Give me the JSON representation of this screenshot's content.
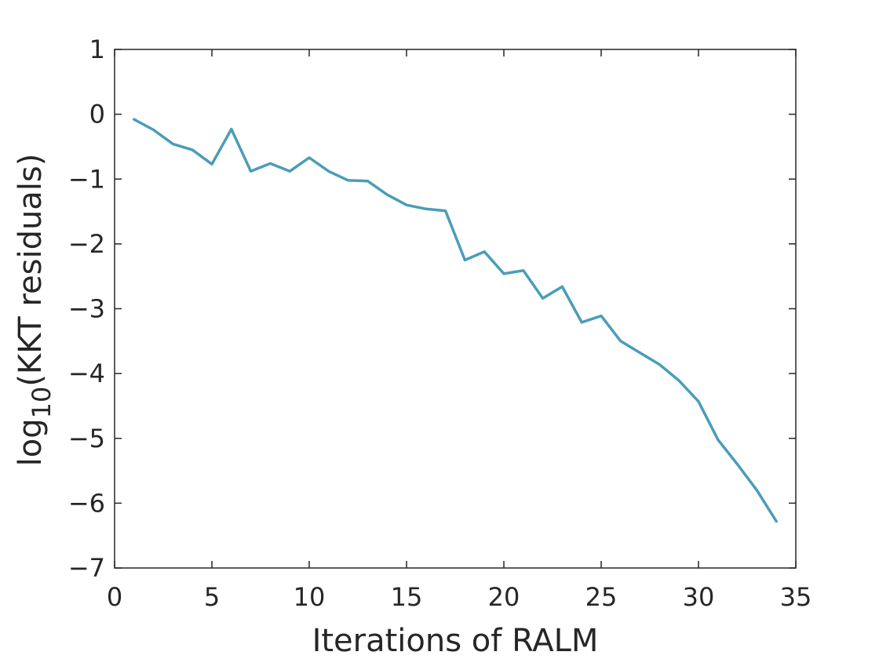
{
  "chart_data": {
    "type": "line",
    "xlabel": "Iterations of RALM",
    "ylabel_base": "log",
    "ylabel_sub": "10",
    "ylabel_rest": "(KKT residuals)",
    "xlim": [
      0,
      35
    ],
    "ylim": [
      -7,
      1
    ],
    "xticks": [
      0,
      5,
      10,
      15,
      20,
      25,
      30,
      35
    ],
    "yticks": [
      1,
      0,
      -1,
      -2,
      -3,
      -4,
      -5,
      -6,
      -7
    ],
    "grid": false,
    "line_color": "#4a9db8",
    "x": [
      1,
      2,
      3,
      4,
      5,
      6,
      7,
      8,
      9,
      10,
      11,
      12,
      13,
      14,
      15,
      16,
      17,
      18,
      19,
      20,
      21,
      22,
      23,
      24,
      25,
      26,
      27,
      28,
      29,
      30,
      31,
      32,
      33,
      34
    ],
    "y": [
      -0.08,
      -0.24,
      -0.46,
      -0.55,
      -0.77,
      -0.23,
      -0.88,
      -0.76,
      -0.88,
      -0.67,
      -0.88,
      -1.02,
      -1.03,
      -1.24,
      -1.4,
      -1.46,
      -1.49,
      -2.25,
      -2.12,
      -2.46,
      -2.41,
      -2.84,
      -2.66,
      -3.21,
      -3.11,
      -3.5,
      -3.68,
      -3.86,
      -4.11,
      -4.43,
      -5.02,
      -5.4,
      -5.8,
      -6.28
    ]
  }
}
